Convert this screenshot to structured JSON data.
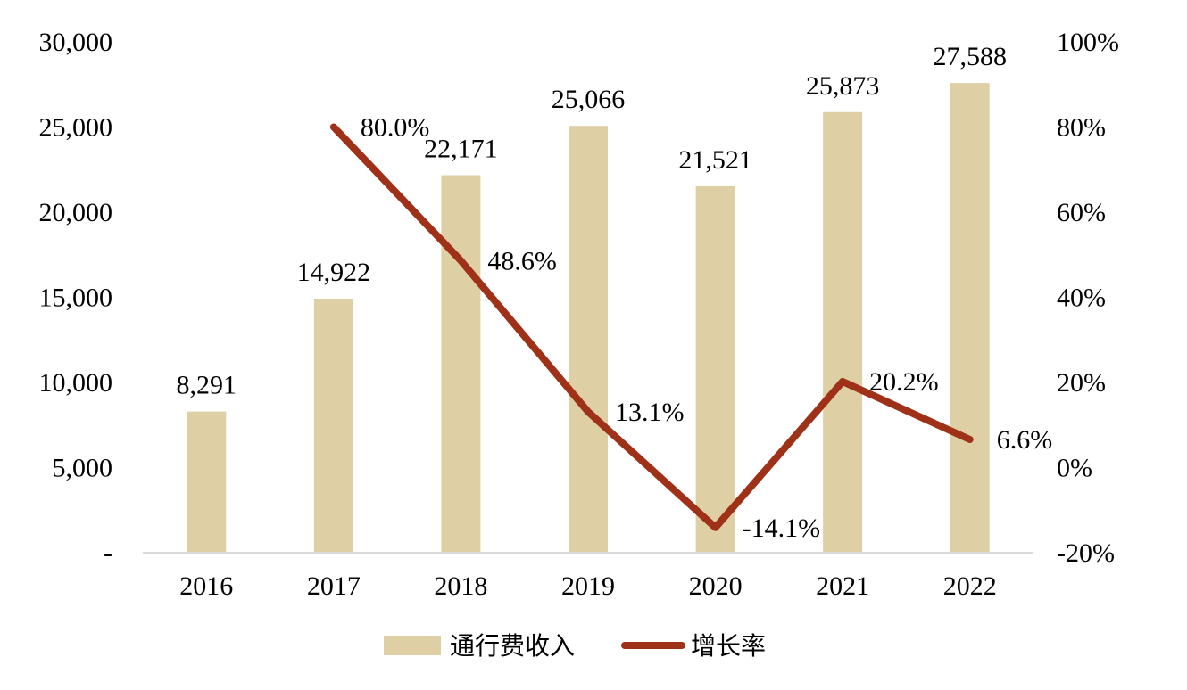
{
  "chart_data": {
    "type": "bar",
    "categories": [
      "2016",
      "2017",
      "2018",
      "2019",
      "2020",
      "2021",
      "2022"
    ],
    "series": [
      {
        "name": "通行费收入",
        "type": "bar",
        "axis": "left",
        "values": [
          8291,
          14922,
          22171,
          25066,
          21521,
          25873,
          27588
        ],
        "labels": [
          "8,291",
          "14,922",
          "22,171",
          "25,066",
          "21,521",
          "25,873",
          "27,588"
        ]
      },
      {
        "name": "增长率",
        "type": "line",
        "axis": "right",
        "values": [
          null,
          80.0,
          48.6,
          13.1,
          -14.1,
          20.2,
          6.6
        ],
        "labels": [
          "",
          "80.0%",
          "48.6%",
          "13.1%",
          "-14.1%",
          "20.2%",
          "6.6%"
        ]
      }
    ],
    "y_left": {
      "lim": [
        0,
        30000
      ],
      "ticks": [
        0,
        5000,
        10000,
        15000,
        20000,
        25000,
        30000
      ],
      "tick_labels": [
        "-",
        "5,000",
        "10,000",
        "15,000",
        "20,000",
        "25,000",
        "30,000"
      ]
    },
    "y_right": {
      "lim": [
        -20,
        100
      ],
      "ticks": [
        -20,
        0,
        20,
        40,
        60,
        80,
        100
      ],
      "tick_labels": [
        "-20%",
        "0%",
        "20%",
        "40%",
        "60%",
        "80%",
        "100%"
      ]
    },
    "grid": false,
    "legend": {
      "position": "bottom-center"
    },
    "colors": {
      "bar": "#DFCFA4",
      "line": "#9E3117",
      "axis": "#D9D9D9"
    }
  }
}
